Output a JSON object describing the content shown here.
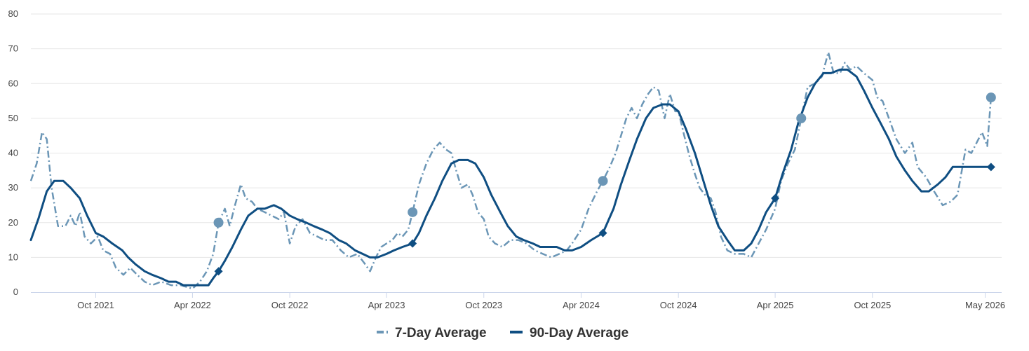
{
  "chart_data": {
    "type": "line",
    "title": "",
    "xlabel": "",
    "ylabel": "",
    "ylim": [
      0,
      80
    ],
    "yticks": [
      0,
      10,
      20,
      30,
      40,
      50,
      60,
      70,
      80
    ],
    "xlim": [
      "2021-06-01",
      "2026-06-01"
    ],
    "xticks": [
      {
        "date": "2021-10-01",
        "label": "Oct 2021"
      },
      {
        "date": "2022-04-01",
        "label": "Apr 2022"
      },
      {
        "date": "2022-10-01",
        "label": "Oct 2022"
      },
      {
        "date": "2023-04-01",
        "label": "Apr 2023"
      },
      {
        "date": "2023-10-01",
        "label": "Oct 2023"
      },
      {
        "date": "2024-04-01",
        "label": "Apr 2024"
      },
      {
        "date": "2024-10-01",
        "label": "Oct 2024"
      },
      {
        "date": "2025-04-01",
        "label": "Apr 2025"
      },
      {
        "date": "2025-10-01",
        "label": "Oct 2025"
      },
      {
        "date": "2026-05-01",
        "label": "May 2026"
      }
    ],
    "grid": true,
    "legend": "bottom-center",
    "series": [
      {
        "name": "7-Day Average",
        "style": "dashed",
        "color": "#6b96b6",
        "marker": "circle",
        "points": [
          [
            "2021-06-01",
            32
          ],
          [
            "2021-06-12",
            37
          ],
          [
            "2021-06-22",
            46
          ],
          [
            "2021-07-01",
            44
          ],
          [
            "2021-07-10",
            30
          ],
          [
            "2021-07-22",
            19
          ],
          [
            "2021-08-05",
            19
          ],
          [
            "2021-08-15",
            22
          ],
          [
            "2021-08-24",
            19
          ],
          [
            "2021-09-01",
            23
          ],
          [
            "2021-09-10",
            16
          ],
          [
            "2021-09-22",
            14
          ],
          [
            "2021-10-05",
            16
          ],
          [
            "2021-10-15",
            12
          ],
          [
            "2021-10-28",
            11
          ],
          [
            "2021-11-08",
            7
          ],
          [
            "2021-11-22",
            5
          ],
          [
            "2021-12-05",
            7
          ],
          [
            "2021-12-18",
            5
          ],
          [
            "2022-01-01",
            3
          ],
          [
            "2022-01-15",
            2
          ],
          [
            "2022-02-01",
            3
          ],
          [
            "2022-02-20",
            2
          ],
          [
            "2022-03-10",
            2
          ],
          [
            "2022-04-01",
            1
          ],
          [
            "2022-04-15",
            3
          ],
          [
            "2022-04-28",
            6
          ],
          [
            "2022-05-10",
            11
          ],
          [
            "2022-05-20",
            20
          ],
          [
            "2022-06-01",
            24
          ],
          [
            "2022-06-10",
            19
          ],
          [
            "2022-06-20",
            25
          ],
          [
            "2022-07-01",
            31
          ],
          [
            "2022-07-10",
            27
          ],
          [
            "2022-07-22",
            26
          ],
          [
            "2022-08-01",
            24
          ],
          [
            "2022-08-15",
            23
          ],
          [
            "2022-08-28",
            22
          ],
          [
            "2022-09-10",
            21
          ],
          [
            "2022-09-20",
            23
          ],
          [
            "2022-10-01",
            14
          ],
          [
            "2022-10-12",
            19
          ],
          [
            "2022-10-25",
            21
          ],
          [
            "2022-11-08",
            17
          ],
          [
            "2022-11-22",
            16
          ],
          [
            "2022-12-05",
            15
          ],
          [
            "2022-12-20",
            15
          ],
          [
            "2023-01-05",
            12
          ],
          [
            "2023-01-20",
            10
          ],
          [
            "2023-02-05",
            11
          ],
          [
            "2023-02-20",
            8
          ],
          [
            "2023-03-01",
            6
          ],
          [
            "2023-03-12",
            10
          ],
          [
            "2023-03-22",
            13
          ],
          [
            "2023-04-01",
            14
          ],
          [
            "2023-04-12",
            15
          ],
          [
            "2023-04-22",
            17
          ],
          [
            "2023-05-01",
            16
          ],
          [
            "2023-05-12",
            18
          ],
          [
            "2023-05-20",
            23
          ],
          [
            "2023-06-01",
            31
          ],
          [
            "2023-06-15",
            37
          ],
          [
            "2023-06-28",
            41
          ],
          [
            "2023-07-10",
            43
          ],
          [
            "2023-07-22",
            41
          ],
          [
            "2023-08-01",
            40
          ],
          [
            "2023-08-10",
            35
          ],
          [
            "2023-08-20",
            30
          ],
          [
            "2023-09-01",
            31
          ],
          [
            "2023-09-10",
            28
          ],
          [
            "2023-09-20",
            23
          ],
          [
            "2023-10-01",
            21
          ],
          [
            "2023-10-10",
            16
          ],
          [
            "2023-10-22",
            14
          ],
          [
            "2023-11-05",
            13
          ],
          [
            "2023-11-20",
            15
          ],
          [
            "2023-12-05",
            15
          ],
          [
            "2023-12-20",
            14
          ],
          [
            "2024-01-05",
            12
          ],
          [
            "2024-01-20",
            11
          ],
          [
            "2024-02-05",
            10
          ],
          [
            "2024-02-20",
            11
          ],
          [
            "2024-03-05",
            12
          ],
          [
            "2024-03-15",
            14
          ],
          [
            "2024-04-01",
            18
          ],
          [
            "2024-04-15",
            24
          ],
          [
            "2024-05-01",
            29
          ],
          [
            "2024-05-12",
            32
          ],
          [
            "2024-05-25",
            36
          ],
          [
            "2024-06-05",
            40
          ],
          [
            "2024-06-15",
            45
          ],
          [
            "2024-06-25",
            50
          ],
          [
            "2024-07-05",
            53
          ],
          [
            "2024-07-15",
            50
          ],
          [
            "2024-07-25",
            54
          ],
          [
            "2024-08-05",
            57
          ],
          [
            "2024-08-15",
            59
          ],
          [
            "2024-08-25",
            58
          ],
          [
            "2024-09-05",
            50
          ],
          [
            "2024-09-15",
            57
          ],
          [
            "2024-09-25",
            52
          ],
          [
            "2024-10-01",
            52
          ],
          [
            "2024-10-12",
            45
          ],
          [
            "2024-10-22",
            39
          ],
          [
            "2024-11-01",
            34
          ],
          [
            "2024-11-10",
            30
          ],
          [
            "2024-11-20",
            28
          ],
          [
            "2024-12-01",
            27
          ],
          [
            "2024-12-10",
            23
          ],
          [
            "2024-12-20",
            16
          ],
          [
            "2025-01-01",
            12
          ],
          [
            "2025-01-15",
            11
          ],
          [
            "2025-02-01",
            11
          ],
          [
            "2025-02-15",
            10
          ],
          [
            "2025-03-01",
            14
          ],
          [
            "2025-03-15",
            18
          ],
          [
            "2025-04-01",
            24
          ],
          [
            "2025-04-12",
            32
          ],
          [
            "2025-04-25",
            37
          ],
          [
            "2025-05-08",
            41
          ],
          [
            "2025-05-20",
            50
          ],
          [
            "2025-06-01",
            59
          ],
          [
            "2025-06-15",
            60
          ],
          [
            "2025-06-28",
            62
          ],
          [
            "2025-07-10",
            69
          ],
          [
            "2025-07-20",
            63
          ],
          [
            "2025-08-01",
            63
          ],
          [
            "2025-08-10",
            66
          ],
          [
            "2025-08-20",
            64
          ],
          [
            "2025-09-01",
            65
          ],
          [
            "2025-09-15",
            63
          ],
          [
            "2025-10-01",
            61
          ],
          [
            "2025-10-10",
            56
          ],
          [
            "2025-10-20",
            55
          ],
          [
            "2025-11-01",
            50
          ],
          [
            "2025-11-15",
            44
          ],
          [
            "2025-12-01",
            40
          ],
          [
            "2025-12-15",
            43
          ],
          [
            "2025-12-25",
            36
          ],
          [
            "2026-01-10",
            33
          ],
          [
            "2026-01-25",
            29
          ],
          [
            "2026-02-10",
            25
          ],
          [
            "2026-02-25",
            26
          ],
          [
            "2026-03-10",
            28
          ],
          [
            "2026-03-25",
            41
          ],
          [
            "2026-04-05",
            40
          ],
          [
            "2026-04-15",
            43
          ],
          [
            "2026-04-25",
            46
          ],
          [
            "2026-05-05",
            42
          ],
          [
            "2026-05-12",
            56
          ]
        ],
        "markers": [
          [
            "2022-05-20",
            20
          ],
          [
            "2023-05-20",
            23
          ],
          [
            "2024-05-12",
            32
          ],
          [
            "2025-05-20",
            50
          ],
          [
            "2026-05-12",
            56
          ]
        ]
      },
      {
        "name": "90-Day Average",
        "style": "solid",
        "color": "#0f4e82",
        "marker": "diamond",
        "points": [
          [
            "2021-06-01",
            15
          ],
          [
            "2021-06-15",
            21
          ],
          [
            "2021-07-01",
            29
          ],
          [
            "2021-07-15",
            32
          ],
          [
            "2021-08-01",
            32
          ],
          [
            "2021-08-15",
            30
          ],
          [
            "2021-09-01",
            27
          ],
          [
            "2021-09-15",
            22
          ],
          [
            "2021-10-01",
            17
          ],
          [
            "2021-10-15",
            16
          ],
          [
            "2021-11-01",
            14
          ],
          [
            "2021-11-20",
            12
          ],
          [
            "2021-12-01",
            10
          ],
          [
            "2021-12-15",
            8
          ],
          [
            "2022-01-01",
            6
          ],
          [
            "2022-01-15",
            5
          ],
          [
            "2022-02-01",
            4
          ],
          [
            "2022-02-15",
            3
          ],
          [
            "2022-03-01",
            3
          ],
          [
            "2022-03-15",
            2
          ],
          [
            "2022-04-01",
            2
          ],
          [
            "2022-04-15",
            2
          ],
          [
            "2022-05-01",
            2
          ],
          [
            "2022-05-10",
            4
          ],
          [
            "2022-05-20",
            6
          ],
          [
            "2022-06-01",
            9
          ],
          [
            "2022-06-15",
            13
          ],
          [
            "2022-07-01",
            18
          ],
          [
            "2022-07-15",
            22
          ],
          [
            "2022-08-01",
            24
          ],
          [
            "2022-08-15",
            24
          ],
          [
            "2022-09-01",
            25
          ],
          [
            "2022-09-15",
            24
          ],
          [
            "2022-10-01",
            22
          ],
          [
            "2022-10-15",
            21
          ],
          [
            "2022-11-01",
            20
          ],
          [
            "2022-11-15",
            19
          ],
          [
            "2022-12-01",
            18
          ],
          [
            "2022-12-15",
            17
          ],
          [
            "2023-01-01",
            15
          ],
          [
            "2023-01-15",
            14
          ],
          [
            "2023-02-01",
            12
          ],
          [
            "2023-02-15",
            11
          ],
          [
            "2023-03-01",
            10
          ],
          [
            "2023-03-15",
            10
          ],
          [
            "2023-04-01",
            11
          ],
          [
            "2023-04-15",
            12
          ],
          [
            "2023-05-01",
            13
          ],
          [
            "2023-05-20",
            14
          ],
          [
            "2023-06-01",
            17
          ],
          [
            "2023-06-15",
            22
          ],
          [
            "2023-07-01",
            27
          ],
          [
            "2023-07-15",
            32
          ],
          [
            "2023-08-01",
            37
          ],
          [
            "2023-08-15",
            38
          ],
          [
            "2023-09-01",
            38
          ],
          [
            "2023-09-15",
            37
          ],
          [
            "2023-10-01",
            33
          ],
          [
            "2023-10-15",
            28
          ],
          [
            "2023-11-01",
            23
          ],
          [
            "2023-11-15",
            19
          ],
          [
            "2023-12-01",
            16
          ],
          [
            "2023-12-15",
            15
          ],
          [
            "2024-01-01",
            14
          ],
          [
            "2024-01-15",
            13
          ],
          [
            "2024-02-01",
            13
          ],
          [
            "2024-02-15",
            13
          ],
          [
            "2024-03-01",
            12
          ],
          [
            "2024-03-15",
            12
          ],
          [
            "2024-04-01",
            13
          ],
          [
            "2024-04-20",
            15
          ],
          [
            "2024-05-12",
            17
          ],
          [
            "2024-06-01",
            24
          ],
          [
            "2024-06-15",
            31
          ],
          [
            "2024-07-01",
            38
          ],
          [
            "2024-07-15",
            44
          ],
          [
            "2024-08-01",
            50
          ],
          [
            "2024-08-15",
            53
          ],
          [
            "2024-09-01",
            54
          ],
          [
            "2024-09-15",
            54
          ],
          [
            "2024-10-01",
            52
          ],
          [
            "2024-10-15",
            47
          ],
          [
            "2024-11-01",
            40
          ],
          [
            "2024-11-15",
            33
          ],
          [
            "2024-12-01",
            25
          ],
          [
            "2024-12-15",
            19
          ],
          [
            "2025-01-01",
            15
          ],
          [
            "2025-01-15",
            12
          ],
          [
            "2025-02-01",
            12
          ],
          [
            "2025-02-15",
            14
          ],
          [
            "2025-03-01",
            18
          ],
          [
            "2025-03-15",
            23
          ],
          [
            "2025-04-01",
            27
          ],
          [
            "2025-04-15",
            34
          ],
          [
            "2025-05-01",
            41
          ],
          [
            "2025-05-15",
            49
          ],
          [
            "2025-06-01",
            56
          ],
          [
            "2025-06-15",
            60
          ],
          [
            "2025-07-01",
            63
          ],
          [
            "2025-07-15",
            63
          ],
          [
            "2025-08-01",
            64
          ],
          [
            "2025-08-15",
            64
          ],
          [
            "2025-09-01",
            62
          ],
          [
            "2025-09-15",
            58
          ],
          [
            "2025-10-01",
            53
          ],
          [
            "2025-10-15",
            49
          ],
          [
            "2025-11-01",
            44
          ],
          [
            "2025-11-15",
            39
          ],
          [
            "2025-12-01",
            35
          ],
          [
            "2025-12-15",
            32
          ],
          [
            "2026-01-01",
            29
          ],
          [
            "2026-01-15",
            29
          ],
          [
            "2026-02-01",
            31
          ],
          [
            "2026-02-15",
            33
          ],
          [
            "2026-03-01",
            36
          ],
          [
            "2026-05-12",
            36
          ]
        ],
        "markers": [
          [
            "2022-05-20",
            6
          ],
          [
            "2023-05-20",
            14
          ],
          [
            "2024-05-12",
            17
          ],
          [
            "2025-04-01",
            27
          ],
          [
            "2026-05-12",
            36
          ]
        ]
      }
    ]
  },
  "colors": {
    "grid": "#e6e6e6",
    "axis": "#ccd6eb",
    "seven_day": "#6b96b6",
    "ninety_day": "#0f4e82"
  }
}
